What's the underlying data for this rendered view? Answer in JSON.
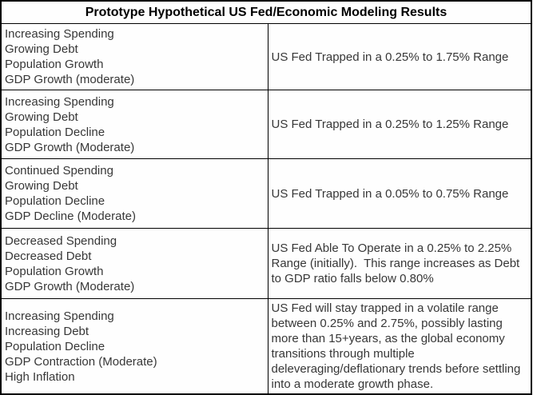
{
  "table": {
    "title": "Prototype Hypothetical US Fed/Economic Modeling Results",
    "rows": [
      {
        "scenario": [
          "Increasing Spending",
          "Growing Debt",
          "Population Growth",
          "GDP Growth (moderate)"
        ],
        "result": "US Fed Trapped in a 0.25% to 1.75% Range"
      },
      {
        "scenario": [
          "Increasing Spending",
          "Growing Debt",
          "Population Decline",
          "GDP Growth (Moderate)"
        ],
        "result": "US Fed Trapped in a 0.25% to 1.25% Range"
      },
      {
        "scenario": [
          "Continued Spending",
          "Growing Debt",
          "Population Decline",
          "GDP Decline (Moderate)"
        ],
        "result": "US Fed Trapped in a 0.05% to 0.75% Range"
      },
      {
        "scenario": [
          "Decreased Spending",
          "Decreased Debt",
          "Population Growth",
          "GDP Growth (Moderate)"
        ],
        "result": "US Fed Able To Operate in a 0.25% to 2.25% Range (initially).  This range increases as Debt to GDP ratio falls below 0.80%"
      },
      {
        "scenario": [
          "Increasing Spending",
          "Increasing Debt",
          "Population Decline",
          "GDP Contraction (Moderate)",
          "High Inflation"
        ],
        "result": "US Fed will stay trapped in a volatile range between 0.25% and 2.75%, possibly lasting more than 15+years, as the global economy transitions through multiple deleveraging/deflationary trends before settling into a moderate growth phase."
      }
    ],
    "colors": {
      "border": "#000000",
      "header_text": "#000000",
      "body_text": "#373737",
      "background": "#ffffff"
    }
  }
}
